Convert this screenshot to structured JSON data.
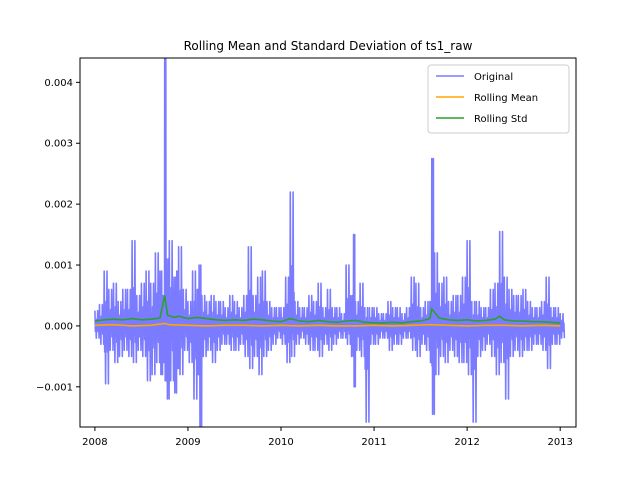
{
  "chart_data": {
    "type": "line",
    "title": "Rolling Mean and Standard Deviation of ts1_raw",
    "xlabel": "",
    "ylabel": "",
    "xlim": [
      2007.84,
      2013.17
    ],
    "ylim": [
      -0.00166,
      0.0044
    ],
    "grid": false,
    "legend_position": "top-right",
    "x_ticks": [
      2008,
      2009,
      2010,
      2011,
      2012,
      2013
    ],
    "x_tick_labels": [
      "2008",
      "2009",
      "2010",
      "2011",
      "2012",
      "2013"
    ],
    "y_ticks": [
      -0.001,
      0.0,
      0.001,
      0.002,
      0.003,
      0.004
    ],
    "y_tick_labels": [
      "−0.001",
      "0.000",
      "0.001",
      "0.002",
      "0.003",
      "0.004"
    ],
    "series": [
      {
        "name": "Original",
        "color": "#7b7bff",
        "x": [
          2008.0,
          2008.05,
          2008.1,
          2008.15,
          2008.2,
          2008.25,
          2008.3,
          2008.35,
          2008.4,
          2008.45,
          2008.5,
          2008.55,
          2008.6,
          2008.65,
          2008.7,
          2008.73,
          2008.75,
          2008.77,
          2008.8,
          2008.85,
          2008.88,
          2008.9,
          2008.95,
          2009.0,
          2009.05,
          2009.1,
          2009.12,
          2009.15,
          2009.2,
          2009.25,
          2009.3,
          2009.35,
          2009.4,
          2009.45,
          2009.5,
          2009.55,
          2009.6,
          2009.65,
          2009.7,
          2009.75,
          2009.8,
          2009.85,
          2009.9,
          2009.95,
          2010.0,
          2010.05,
          2010.1,
          2010.15,
          2010.2,
          2010.25,
          2010.3,
          2010.35,
          2010.4,
          2010.45,
          2010.5,
          2010.55,
          2010.6,
          2010.65,
          2010.7,
          2010.75,
          2010.78,
          2010.8,
          2010.85,
          2010.9,
          2010.95,
          2011.0,
          2011.05,
          2011.1,
          2011.15,
          2011.2,
          2011.25,
          2011.3,
          2011.35,
          2011.4,
          2011.45,
          2011.5,
          2011.55,
          2011.6,
          2011.62,
          2011.65,
          2011.7,
          2011.75,
          2011.8,
          2011.85,
          2011.9,
          2011.95,
          2012.0,
          2012.05,
          2012.1,
          2012.15,
          2012.2,
          2012.25,
          2012.3,
          2012.35,
          2012.4,
          2012.45,
          2012.5,
          2012.55,
          2012.6,
          2012.65,
          2012.7,
          2012.75,
          2012.8,
          2012.85,
          2012.9,
          2012.95,
          2013.0
        ],
        "high": [
          0.00025,
          0.00035,
          0.0009,
          0.0006,
          0.0007,
          0.0004,
          0.0006,
          0.0006,
          0.0014,
          0.0005,
          0.0007,
          0.0009,
          0.0007,
          0.0012,
          0.0009,
          0.0005,
          0.0044,
          0.0011,
          0.0014,
          0.0008,
          0.0009,
          0.0013,
          0.0006,
          0.0004,
          0.0009,
          0.0006,
          0.001,
          0.0005,
          0.0004,
          0.0005,
          0.0004,
          0.0004,
          0.0003,
          0.0005,
          0.0004,
          0.0003,
          0.0005,
          0.0013,
          0.0005,
          0.0008,
          0.0009,
          0.0004,
          0.0003,
          0.0003,
          0.0003,
          0.0008,
          0.0022,
          0.0004,
          0.0003,
          0.0003,
          0.0005,
          0.0004,
          0.0007,
          0.0003,
          0.0006,
          0.0003,
          0.0003,
          0.0002,
          0.001,
          0.0005,
          0.0015,
          0.0004,
          0.0007,
          0.0003,
          0.0003,
          0.0003,
          0.0002,
          0.0002,
          0.0004,
          0.0003,
          0.0003,
          0.0002,
          0.0003,
          0.0008,
          0.0007,
          0.0003,
          0.0004,
          0.0004,
          0.00275,
          0.0012,
          0.0007,
          0.0008,
          0.0004,
          0.0005,
          0.0005,
          0.0008,
          0.0014,
          0.0004,
          0.0004,
          0.0003,
          0.0003,
          0.0006,
          0.0007,
          0.00155,
          0.0008,
          0.0006,
          0.0005,
          0.0005,
          0.0006,
          0.0004,
          0.0003,
          0.0003,
          0.0004,
          0.0008,
          0.0003,
          0.0003,
          0.0002
        ],
        "low": [
          -0.0002,
          -0.0003,
          -0.00095,
          -0.0004,
          -0.0006,
          -0.0005,
          -0.0004,
          -0.0005,
          -0.0006,
          -0.0004,
          -0.0005,
          -0.0009,
          -0.0008,
          -0.0006,
          -0.0008,
          -0.0006,
          -0.0009,
          -0.0012,
          -0.0009,
          -0.0011,
          -0.0007,
          -0.0008,
          -0.0004,
          -0.0006,
          -0.0012,
          -0.0008,
          -0.00165,
          -0.0005,
          -0.0004,
          -0.0006,
          -0.0004,
          -0.0003,
          -0.0003,
          -0.0004,
          -0.0004,
          -0.0003,
          -0.0005,
          -0.0007,
          -0.0005,
          -0.0008,
          -0.0005,
          -0.0004,
          -0.0003,
          -0.0002,
          -0.0003,
          -0.0006,
          -0.0005,
          -0.0003,
          -0.0002,
          -0.0003,
          -0.0004,
          -0.0004,
          -0.0005,
          -0.0003,
          -0.0004,
          -0.0003,
          -0.0002,
          -0.0002,
          -0.0003,
          -0.0005,
          -0.001,
          -0.0004,
          -0.0005,
          -0.00158,
          -0.0003,
          -0.0003,
          -0.0002,
          -0.0002,
          -0.0004,
          -0.0003,
          -0.0003,
          -0.0002,
          -0.0002,
          -0.0004,
          -0.0005,
          -0.0003,
          -0.0004,
          -0.0006,
          -0.00145,
          -0.0008,
          -0.0005,
          -0.0006,
          -0.0004,
          -0.0005,
          -0.0006,
          -0.0006,
          -0.0008,
          -0.00158,
          -0.0005,
          -0.0004,
          -0.0003,
          -0.0005,
          -0.0008,
          -0.0006,
          -0.0012,
          -0.0005,
          -0.0004,
          -0.0005,
          -0.0004,
          -0.0004,
          -0.0003,
          -0.0003,
          -0.0004,
          -0.0007,
          -0.0003,
          -0.0003,
          -0.0002
        ]
      },
      {
        "name": "Rolling Mean",
        "color": "#ffa500",
        "x": [
          2008.0,
          2008.2,
          2008.4,
          2008.6,
          2008.75,
          2008.8,
          2009.0,
          2009.2,
          2009.4,
          2009.6,
          2009.8,
          2010.0,
          2010.2,
          2010.4,
          2010.6,
          2010.8,
          2011.0,
          2011.2,
          2011.4,
          2011.6,
          2011.8,
          2012.0,
          2012.2,
          2012.4,
          2012.6,
          2012.8,
          2013.0
        ],
        "values": [
          1e-05,
          2e-05,
          0.0,
          1e-05,
          4e-05,
          2e-05,
          1e-05,
          0.0,
          1e-05,
          1e-05,
          0.0,
          1e-05,
          0.0,
          1e-05,
          0.0,
          0.0,
          1e-05,
          0.0,
          1e-05,
          2e-05,
          1e-05,
          0.0,
          1e-05,
          1e-05,
          0.0,
          1e-05,
          0.0
        ]
      },
      {
        "name": "Rolling Std",
        "color": "#2ca02c",
        "x": [
          2008.0,
          2008.1,
          2008.2,
          2008.3,
          2008.4,
          2008.5,
          2008.6,
          2008.7,
          2008.75,
          2008.78,
          2008.85,
          2008.9,
          2009.0,
          2009.1,
          2009.2,
          2009.3,
          2009.4,
          2009.5,
          2009.6,
          2009.7,
          2009.8,
          2009.9,
          2010.0,
          2010.1,
          2010.2,
          2010.3,
          2010.4,
          2010.5,
          2010.6,
          2010.7,
          2010.8,
          2010.9,
          2011.0,
          2011.1,
          2011.2,
          2011.3,
          2011.4,
          2011.5,
          2011.6,
          2011.62,
          2011.7,
          2011.8,
          2011.9,
          2012.0,
          2012.1,
          2012.2,
          2012.3,
          2012.35,
          2012.4,
          2012.5,
          2012.6,
          2012.7,
          2012.8,
          2012.9,
          2013.0
        ],
        "values": [
          8e-05,
          0.0001,
          0.00011,
          0.0001,
          0.00012,
          0.0001,
          0.00011,
          0.00013,
          0.0005,
          0.00018,
          0.00014,
          0.00016,
          0.00012,
          0.00014,
          0.00012,
          0.0001,
          9e-05,
          0.0001,
          9e-05,
          0.00011,
          0.0001,
          8e-05,
          7e-05,
          0.00012,
          8e-05,
          7e-05,
          9e-05,
          7e-05,
          6e-05,
          8e-05,
          9e-05,
          6e-05,
          5e-05,
          5e-05,
          6e-05,
          5e-05,
          7e-05,
          8e-05,
          0.00012,
          0.00028,
          0.00013,
          0.0001,
          9e-05,
          0.0001,
          8e-05,
          9e-05,
          0.00011,
          0.00016,
          0.0001,
          8e-05,
          8e-05,
          7e-05,
          7e-05,
          6e-05,
          5e-05
        ]
      }
    ]
  }
}
